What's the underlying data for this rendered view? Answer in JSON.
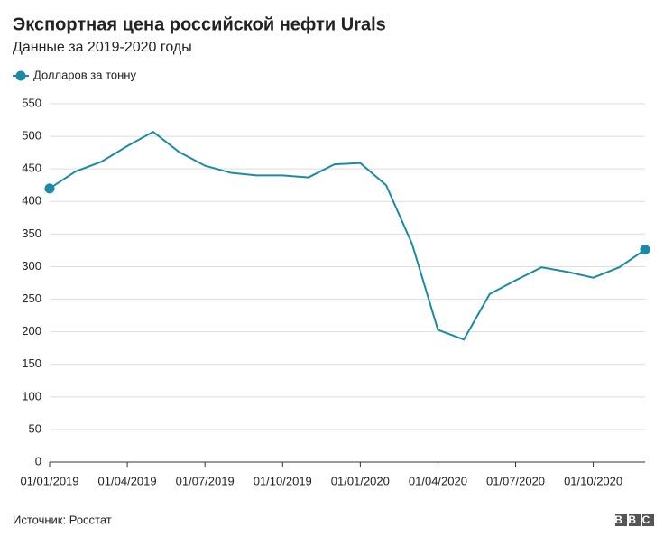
{
  "chart_data": {
    "type": "line",
    "title": "Экспортная цена российской нефти Urals",
    "subtitle": "Данные за 2019-2020 годы",
    "source": "Источник: Росстат",
    "logo": "BBC",
    "categories": [
      "01/01/2019",
      null,
      null,
      "01/04/2019",
      null,
      null,
      "01/07/2019",
      null,
      null,
      "01/10/2019",
      null,
      null,
      "01/01/2020",
      null,
      null,
      "01/04/2020",
      null,
      null,
      "01/07/2020",
      null,
      null,
      "01/10/2020",
      null,
      null
    ],
    "series": [
      {
        "name": "Долларов за тонну",
        "color": "#1b8aa6",
        "values": [
          420,
          446,
          461,
          485,
          507,
          476,
          455,
          444,
          440,
          440,
          437,
          457,
          459,
          425,
          335,
          203,
          188,
          258,
          279,
          299,
          292,
          283,
          299,
          326
        ]
      }
    ],
    "ylim": [
      0,
      550
    ],
    "yticks": [
      0,
      50,
      100,
      150,
      200,
      250,
      300,
      350,
      400,
      450,
      500,
      550
    ],
    "grid": true,
    "legend": "top-left"
  }
}
